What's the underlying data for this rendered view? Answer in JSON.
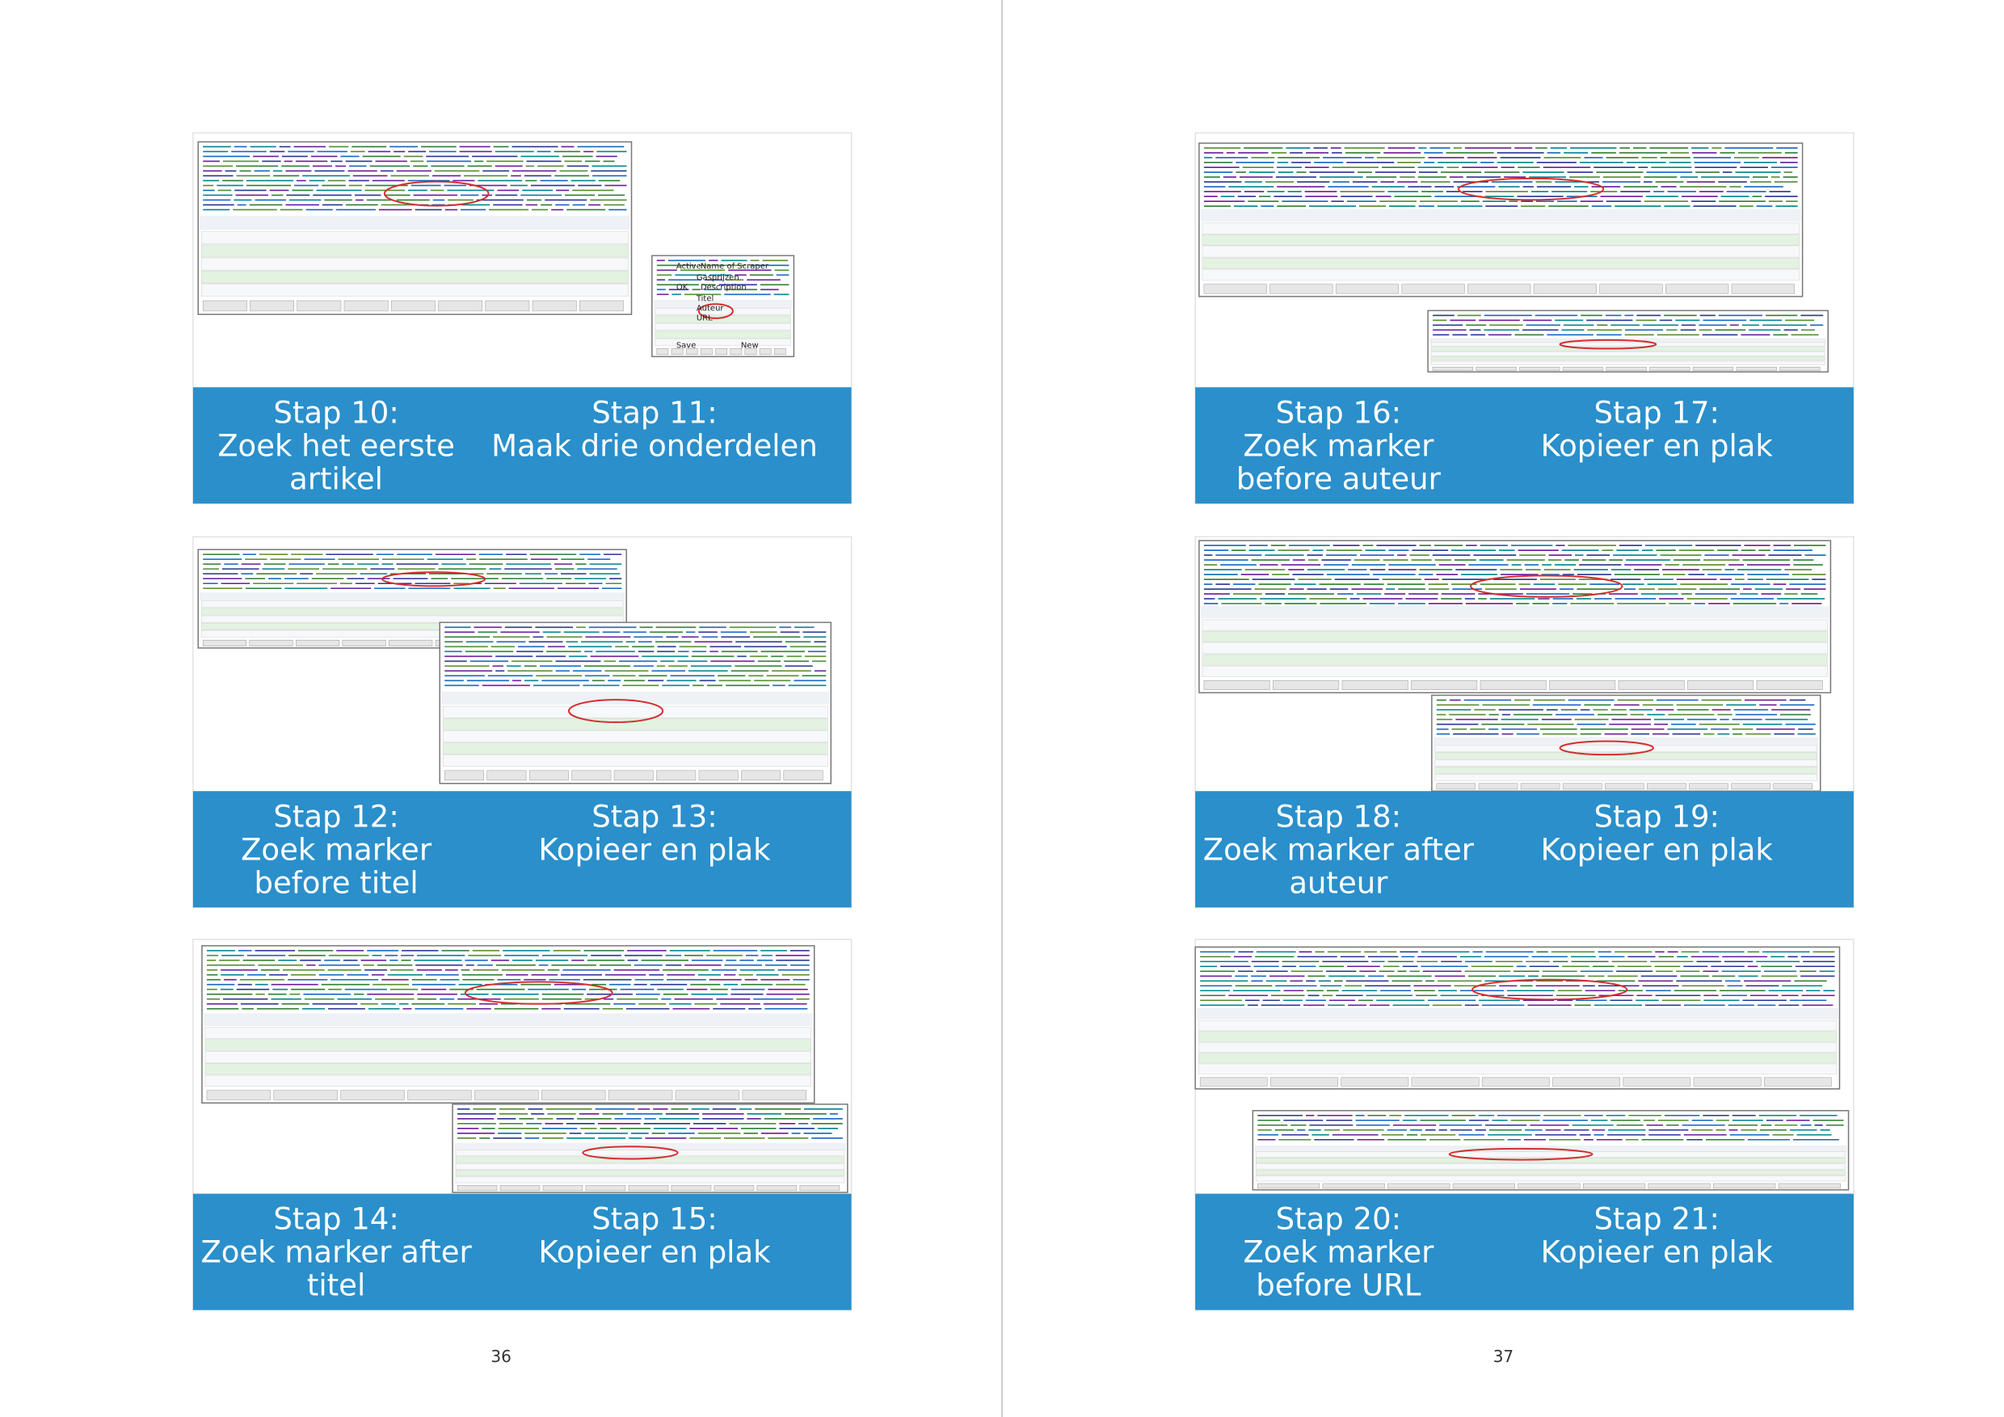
{
  "pages": [
    {
      "number": "36",
      "cards": [
        {
          "captions": [
            [
              "Stap 10:",
              "Zoek het eerste",
              "artikel"
            ],
            [
              "Stap 11:",
              "Maak drie onderdelen"
            ]
          ],
          "inset_labels": [
            "Active",
            "Name of Scraper",
            "Gasprijzen",
            "OK",
            "Description",
            "Titel",
            "Auteur",
            "URL",
            "Save",
            "New"
          ]
        },
        {
          "captions": [
            [
              "Stap 12:",
              "Zoek marker",
              "before titel"
            ],
            [
              "Stap 13:",
              "Kopieer en plak"
            ]
          ]
        },
        {
          "captions": [
            [
              "Stap 14:",
              "Zoek marker after",
              "titel"
            ],
            [
              "Stap 15:",
              "Kopieer en plak"
            ]
          ]
        }
      ]
    },
    {
      "number": "37",
      "cards": [
        {
          "captions": [
            [
              "Stap 16:",
              "Zoek marker",
              "before auteur"
            ],
            [
              "Stap 17:",
              "Kopieer en plak"
            ]
          ]
        },
        {
          "captions": [
            [
              "Stap 18:",
              "Zoek marker after",
              "auteur"
            ],
            [
              "Stap 19:",
              "Kopieer en plak"
            ]
          ]
        },
        {
          "captions": [
            [
              "Stap 20:",
              "Zoek marker",
              "before URL"
            ],
            [
              "Stap 21:",
              "Kopieer en plak"
            ]
          ]
        }
      ]
    }
  ]
}
